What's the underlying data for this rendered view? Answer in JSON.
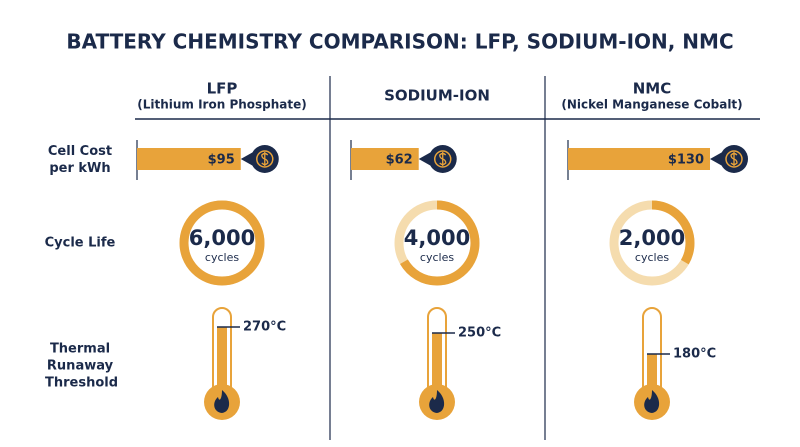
{
  "title": "BATTERY CHEMISTRY COMPARISON: LFP, SODIUM-ION, NMC",
  "row_labels": [
    "Cell Cost per kWh",
    "Cycle Life",
    "Thermal Runaway Threshold"
  ],
  "cycles_unit": "cycles",
  "columns": [
    {
      "name": "LFP",
      "subtitle": "(Lithium Iron Phosphate)",
      "cost": 95,
      "cost_label": "$95",
      "cycles": 6000,
      "cycles_label": "6,000",
      "threshold": 270,
      "threshold_label": "270°C"
    },
    {
      "name": "SODIUM-ION",
      "cost": 62,
      "cost_label": "$62",
      "cycles": 4000,
      "cycles_label": "4,000",
      "threshold": 250,
      "threshold_label": "250°C"
    },
    {
      "name": "NMC",
      "subtitle": "(Nickel Manganese Cobalt)",
      "cost": 130,
      "cost_label": "$130",
      "cycles": 2000,
      "cycles_label": "2,000",
      "threshold": 180,
      "threshold_label": "180°C"
    }
  ]
}
